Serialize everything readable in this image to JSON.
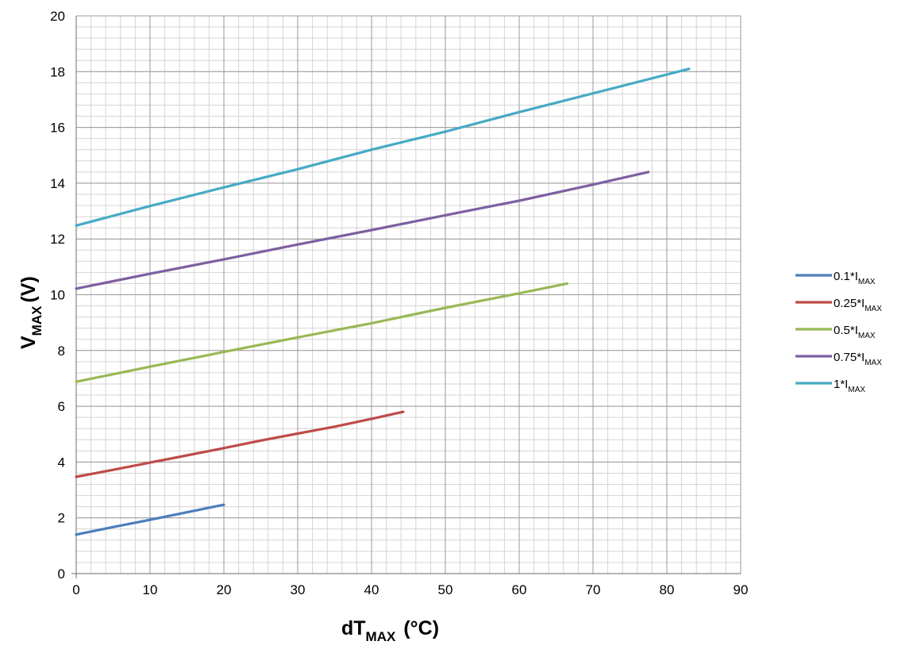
{
  "chart_data": {
    "type": "line",
    "xlabel": {
      "main": "dT",
      "sub": "MAX",
      "unit": "(°C)"
    },
    "ylabel": {
      "main": "V",
      "sub": "MAX",
      "unit": "(V)"
    },
    "xlim": [
      0,
      90
    ],
    "ylim": [
      0,
      20
    ],
    "x_ticks": [
      0,
      10,
      20,
      30,
      40,
      50,
      60,
      70,
      80,
      90
    ],
    "y_ticks": [
      0,
      2,
      4,
      6,
      8,
      10,
      12,
      14,
      16,
      18,
      20
    ],
    "x_minor_step": 2,
    "y_minor_step": 0.4,
    "grid": true,
    "legend_position": "right",
    "series": [
      {
        "name": "0.1*I",
        "name_sub": "MAX",
        "color": "#4a7ebb",
        "points": [
          [
            0,
            1.4
          ],
          [
            5,
            1.67
          ],
          [
            10,
            1.93
          ],
          [
            15,
            2.2
          ],
          [
            20,
            2.47
          ]
        ]
      },
      {
        "name": "0.25*I",
        "name_sub": "MAX",
        "color": "#be4b48",
        "points": [
          [
            0,
            3.47
          ],
          [
            5,
            3.72
          ],
          [
            10,
            3.98
          ],
          [
            15,
            4.24
          ],
          [
            20,
            4.5
          ],
          [
            25,
            4.77
          ],
          [
            30,
            5.02
          ],
          [
            35,
            5.27
          ],
          [
            40,
            5.55
          ],
          [
            44.3,
            5.8
          ]
        ]
      },
      {
        "name": "0.5*I",
        "name_sub": "MAX",
        "color": "#98b954",
        "points": [
          [
            0,
            6.88
          ],
          [
            10,
            7.42
          ],
          [
            20,
            7.95
          ],
          [
            30,
            8.47
          ],
          [
            40,
            8.98
          ],
          [
            50,
            9.53
          ],
          [
            60,
            10.05
          ],
          [
            66.5,
            10.4
          ]
        ]
      },
      {
        "name": "0.75*I",
        "name_sub": "MAX",
        "color": "#7d60a0",
        "points": [
          [
            0,
            10.22
          ],
          [
            10,
            10.75
          ],
          [
            20,
            11.27
          ],
          [
            30,
            11.8
          ],
          [
            40,
            12.32
          ],
          [
            50,
            12.85
          ],
          [
            60,
            13.37
          ],
          [
            70,
            13.95
          ],
          [
            77.5,
            14.4
          ]
        ]
      },
      {
        "name": "1*I",
        "name_sub": "MAX",
        "color": "#46aac5",
        "points": [
          [
            0,
            12.48
          ],
          [
            10,
            13.18
          ],
          [
            20,
            13.85
          ],
          [
            30,
            14.5
          ],
          [
            40,
            15.2
          ],
          [
            50,
            15.85
          ],
          [
            60,
            16.55
          ],
          [
            70,
            17.22
          ],
          [
            83,
            18.1
          ]
        ]
      }
    ]
  }
}
